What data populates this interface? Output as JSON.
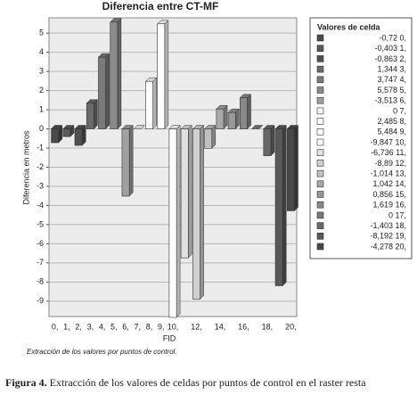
{
  "chart_data": {
    "type": "bar3d",
    "title": "Diferencia entre CT-MF",
    "y_label": "Diferencia en metros",
    "x_label": "FID",
    "legend_title": "Valores  de celda",
    "note": "Extracción de los valores por puntos de control.",
    "caption_label": "Figura 4.",
    "caption_text": "Extracción de los valores de celdas por puntos de control en el raster resta",
    "categories": [
      "0,",
      "1,",
      "2,",
      "3,",
      "4,",
      "5,",
      "6,",
      "7,",
      "8,",
      "9,",
      "10,",
      null,
      "12,",
      null,
      "14,",
      null,
      "16,",
      null,
      "18,",
      null,
      "20,"
    ],
    "values": [
      -0.72,
      -0.403,
      -0.863,
      1.344,
      3.747,
      5.578,
      -3.513,
      0,
      2.485,
      5.484,
      -9.847,
      -6.736,
      -8.89,
      -1.014,
      1.042,
      0.856,
      1.619,
      0,
      -1.403,
      -8.192,
      -4.278
    ],
    "value_labels": [
      "-0,72 0,",
      "-0,403 1,",
      "-0,863 2,",
      "1,344 3,",
      "3,747 4,",
      "5,578 5,",
      "-3,513 6,",
      "0 7,",
      "2,485 8,",
      "5,484 9,",
      "-9,847 10,",
      "-6,736 11,",
      "-8,89 12,",
      "-1,014 13,",
      "1,042 14,",
      "0,856 15,",
      "1,619 16,",
      "0 17,",
      "-1,403 18,",
      "-8,192 19,",
      "-4,278 20,"
    ],
    "colors": [
      "#4a4a4a",
      "#5a5a5a",
      "#505050",
      "#6a6a6a",
      "#7a7a7a",
      "#8a8a8a",
      "#a0a0a0",
      "#f4f4f4",
      "#ffffff",
      "#ffffff",
      "#ffffff",
      "#e0e0e0",
      "#d0d0d0",
      "#c0c0c0",
      "#a8a8a8",
      "#989898",
      "#888888",
      "#787878",
      "#686868",
      "#585858",
      "#484848"
    ],
    "ylim": [
      -9.8,
      5.8
    ],
    "yticks": [
      -9,
      -8,
      -7,
      -6,
      -5,
      -4,
      -3,
      -2,
      -1,
      0,
      1,
      2,
      3,
      4,
      5
    ],
    "grid": true
  }
}
